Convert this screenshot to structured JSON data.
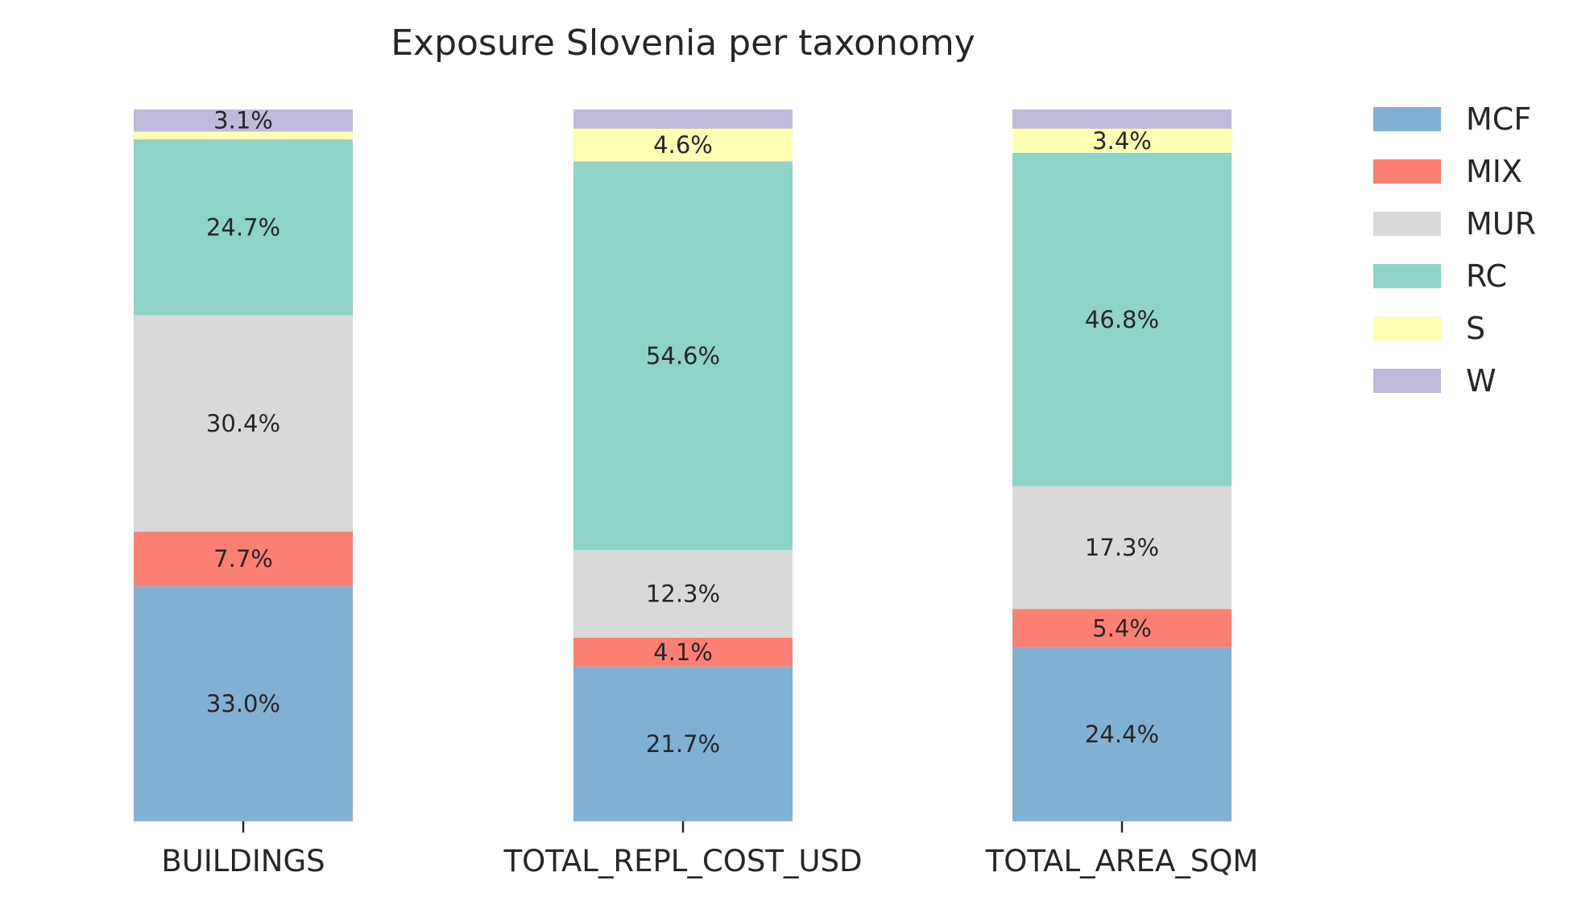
{
  "chart_data": {
    "type": "bar",
    "stacked": true,
    "normalized_percent": true,
    "title": "Exposure Slovenia per taxonomy",
    "categories": [
      "BUILDINGS",
      "TOTAL_REPL_COST_USD",
      "TOTAL_AREA_SQM"
    ],
    "series": [
      {
        "name": "MCF",
        "color": "#80b1d3",
        "values": [
          33.0,
          21.7,
          24.4
        ],
        "labels": [
          "33.0%",
          "21.7%",
          "24.4%"
        ]
      },
      {
        "name": "MIX",
        "color": "#fb8072",
        "values": [
          7.7,
          4.1,
          5.4
        ],
        "labels": [
          "7.7%",
          "4.1%",
          "5.4%"
        ]
      },
      {
        "name": "MUR",
        "color": "#d9d9d9",
        "values": [
          30.4,
          12.3,
          17.3
        ],
        "labels": [
          "30.4%",
          "12.3%",
          "17.3%"
        ]
      },
      {
        "name": "RC",
        "color": "#8dd3c7",
        "values": [
          24.7,
          54.6,
          46.8
        ],
        "labels": [
          "24.7%",
          "54.6%",
          "46.8%"
        ]
      },
      {
        "name": "S",
        "color": "#ffffb3",
        "values": [
          1.1,
          4.6,
          3.4
        ],
        "labels": [
          "",
          "4.6%",
          "3.4%"
        ]
      },
      {
        "name": "W",
        "color": "#bebada",
        "values": [
          3.1,
          2.7,
          2.7
        ],
        "labels": [
          "3.1%",
          "",
          ""
        ]
      }
    ],
    "ylim": [
      0,
      100
    ],
    "xlabel": "",
    "ylabel": "",
    "grid": false,
    "legend_position": "right"
  }
}
